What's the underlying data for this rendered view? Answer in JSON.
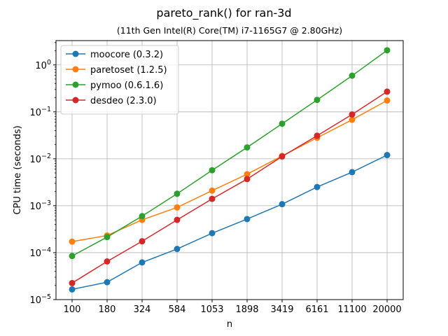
{
  "chart_data": {
    "type": "line",
    "title": "pareto_rank() for ran-3d",
    "subtitle": "(11th Gen Intel(R) Core(TM) i7-1165G7 @ 2.80GHz)",
    "xlabel": "n",
    "ylabel": "CPU time (seconds)",
    "categories": [
      "100",
      "180",
      "324",
      "584",
      "1053",
      "1898",
      "3419",
      "6161",
      "11100",
      "20000"
    ],
    "yscale": "log",
    "ylim": [
      1e-05,
      3.3
    ],
    "yticks": [
      {
        "value": 1e-05,
        "base": "10",
        "exp": "−5"
      },
      {
        "value": 0.0001,
        "base": "10",
        "exp": "−4"
      },
      {
        "value": 0.001,
        "base": "10",
        "exp": "−3"
      },
      {
        "value": 0.01,
        "base": "10",
        "exp": "−2"
      },
      {
        "value": 0.1,
        "base": "10",
        "exp": "−1"
      },
      {
        "value": 1,
        "base": "10",
        "exp": "0"
      }
    ],
    "grid": true,
    "legend_position": "top-left",
    "series": [
      {
        "name": "moocore (0.3.2)",
        "color": "#1f77b4",
        "values": [
          1.65e-05,
          2.35e-05,
          6.2e-05,
          0.00012,
          0.00026,
          0.00052,
          0.00108,
          0.0025,
          0.0052,
          0.012
        ]
      },
      {
        "name": "paretoset (1.2.5)",
        "color": "#ff7f0e",
        "values": [
          0.000172,
          0.000232,
          0.0005,
          0.00092,
          0.0021,
          0.0047,
          0.0115,
          0.028,
          0.068,
          0.175
        ]
      },
      {
        "name": "pymoo (0.6.1.6)",
        "color": "#2ca02c",
        "values": [
          8.5e-05,
          0.000215,
          0.0006,
          0.0018,
          0.0057,
          0.0175,
          0.056,
          0.18,
          0.59,
          2.05
        ]
      },
      {
        "name": "desdeo (2.3.0)",
        "color": "#d62728",
        "values": [
          2.25e-05,
          6.5e-05,
          0.000175,
          0.0005,
          0.0014,
          0.0037,
          0.0112,
          0.031,
          0.088,
          0.27
        ]
      }
    ]
  }
}
